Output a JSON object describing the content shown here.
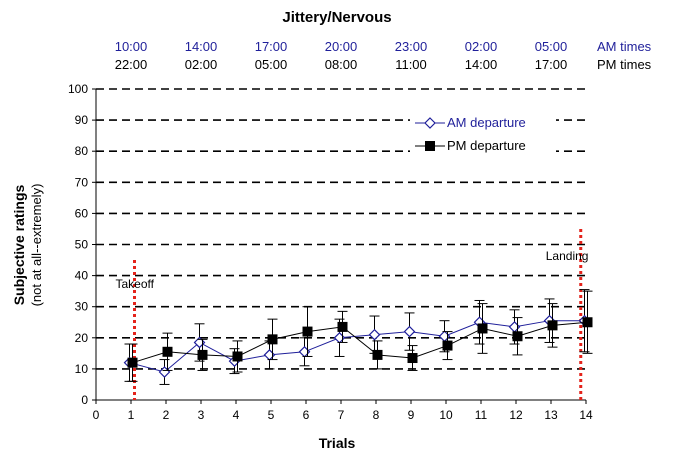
{
  "chart_data": {
    "type": "line",
    "title": "Jittery/Nervous",
    "xlabel": "Trials",
    "ylabel": "Subjective ratings",
    "ylabel2": "(not at all--extremely)",
    "xlim": [
      0,
      14
    ],
    "ylim": [
      0,
      100
    ],
    "x_ticks": [
      0,
      1,
      2,
      3,
      4,
      5,
      6,
      7,
      8,
      9,
      10,
      11,
      12,
      13,
      14
    ],
    "y_ticks": [
      0,
      10,
      20,
      30,
      40,
      50,
      60,
      70,
      80,
      90,
      100
    ],
    "grid": "dashed horizontal",
    "legend_placement": "top-right",
    "top_axis": {
      "am_label": "AM times",
      "pm_label": "PM times",
      "positions": [
        1,
        3,
        5,
        7,
        9,
        11,
        13
      ],
      "am_times": [
        "10:00",
        "14:00",
        "17:00",
        "20:00",
        "23:00",
        "02:00",
        "05:00"
      ],
      "pm_times": [
        "22:00",
        "02:00",
        "05:00",
        "08:00",
        "11:00",
        "14:00",
        "17:00"
      ]
    },
    "x": [
      1,
      2,
      3,
      4,
      5,
      6,
      7,
      8,
      9,
      10,
      11,
      12,
      13,
      14
    ],
    "series": [
      {
        "name": "AM departure",
        "marker": "open-diamond",
        "color": "#1f1f9a",
        "values": [
          12,
          9,
          18.5,
          12.5,
          14.5,
          15.5,
          20,
          21,
          22,
          20.5,
          25,
          23.5,
          25.5,
          25.5
        ],
        "errors": [
          6,
          4,
          6,
          4,
          4.5,
          4.5,
          6,
          6,
          6,
          5,
          7,
          5.5,
          7,
          10
        ]
      },
      {
        "name": "PM departure",
        "marker": "filled-square",
        "color": "#000000",
        "values": [
          12,
          15.5,
          14.5,
          14,
          19.5,
          22,
          23.5,
          14.5,
          13.5,
          17.5,
          23,
          20.5,
          24,
          25
        ],
        "errors": [
          6,
          6,
          5,
          5,
          6.5,
          8,
          5,
          4.5,
          4,
          4.5,
          8,
          6,
          7,
          10
        ]
      }
    ],
    "annotations": [
      {
        "text": "Takeoff",
        "x": 1.1,
        "y1": 0,
        "y2": 45
      },
      {
        "text": "Landing",
        "x": 13.85,
        "y1": 0,
        "y2": 55
      }
    ],
    "colors": {
      "am_text": "#1f1f9a",
      "pm_text": "#000000",
      "marker_line": "#e4231b"
    }
  }
}
